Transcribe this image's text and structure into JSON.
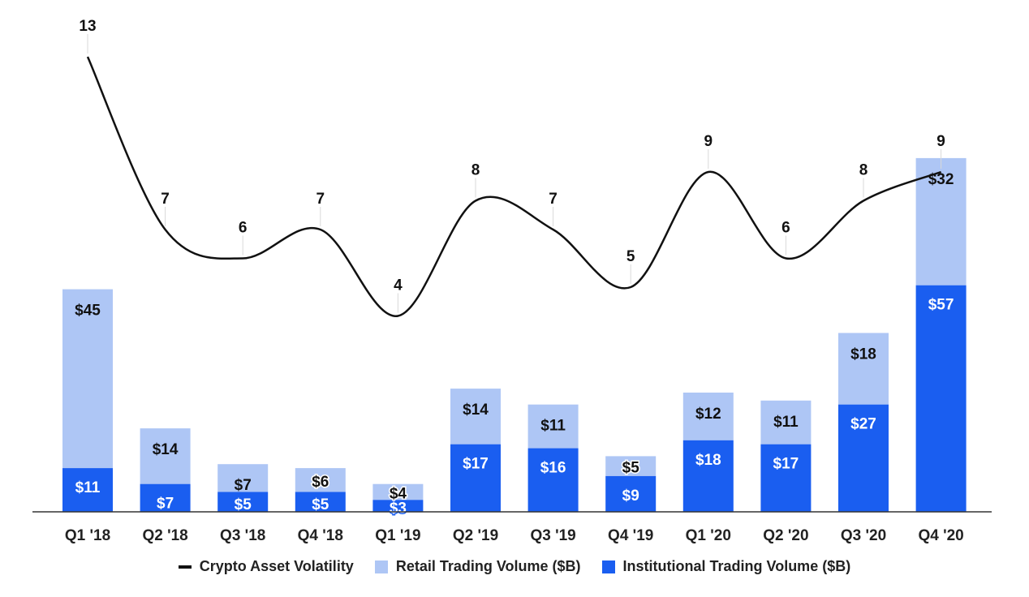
{
  "chart_data": {
    "type": "bar",
    "stacked": true,
    "categories": [
      "Q1 '18",
      "Q2 '18",
      "Q3 '18",
      "Q4 '18",
      "Q1 '19",
      "Q2 '19",
      "Q3 '19",
      "Q4 '19",
      "Q1 '20",
      "Q2 '20",
      "Q3 '20",
      "Q4 '20"
    ],
    "series": [
      {
        "name": "Institutional Trading Volume ($B)",
        "kind": "bar",
        "color": "#1a5ef0",
        "values": [
          11,
          7,
          5,
          5,
          3,
          17,
          16,
          9,
          18,
          17,
          27,
          57
        ],
        "labels": [
          "$11",
          "$7",
          "$5",
          "$5",
          "$3",
          "$17",
          "$16",
          "$9",
          "$18",
          "$17",
          "$27",
          "$57"
        ]
      },
      {
        "name": "Retail Trading Volume ($B)",
        "kind": "bar",
        "color": "#aec6f5",
        "values": [
          45,
          14,
          7,
          6,
          4,
          14,
          11,
          5,
          12,
          11,
          18,
          32
        ],
        "labels": [
          "$45",
          "$14",
          "$7",
          "$6",
          "$4",
          "$14",
          "$11",
          "$5",
          "$12",
          "$11",
          "$18",
          "$32"
        ]
      },
      {
        "name": "Crypto Asset Volatility",
        "kind": "line",
        "color": "#111111",
        "values": [
          13,
          7,
          6,
          7,
          4,
          8,
          7,
          5,
          9,
          6,
          8,
          9
        ],
        "labels": [
          "13",
          "7",
          "6",
          "7",
          "4",
          "8",
          "7",
          "5",
          "9",
          "6",
          "8",
          "9"
        ]
      }
    ],
    "legend": {
      "position": "bottom",
      "order": [
        "Crypto Asset Volatility",
        "Retail Trading Volume ($B)",
        "Institutional Trading Volume ($B)"
      ]
    },
    "grid": false,
    "title": "",
    "xlabel": "",
    "ylabel": ""
  }
}
